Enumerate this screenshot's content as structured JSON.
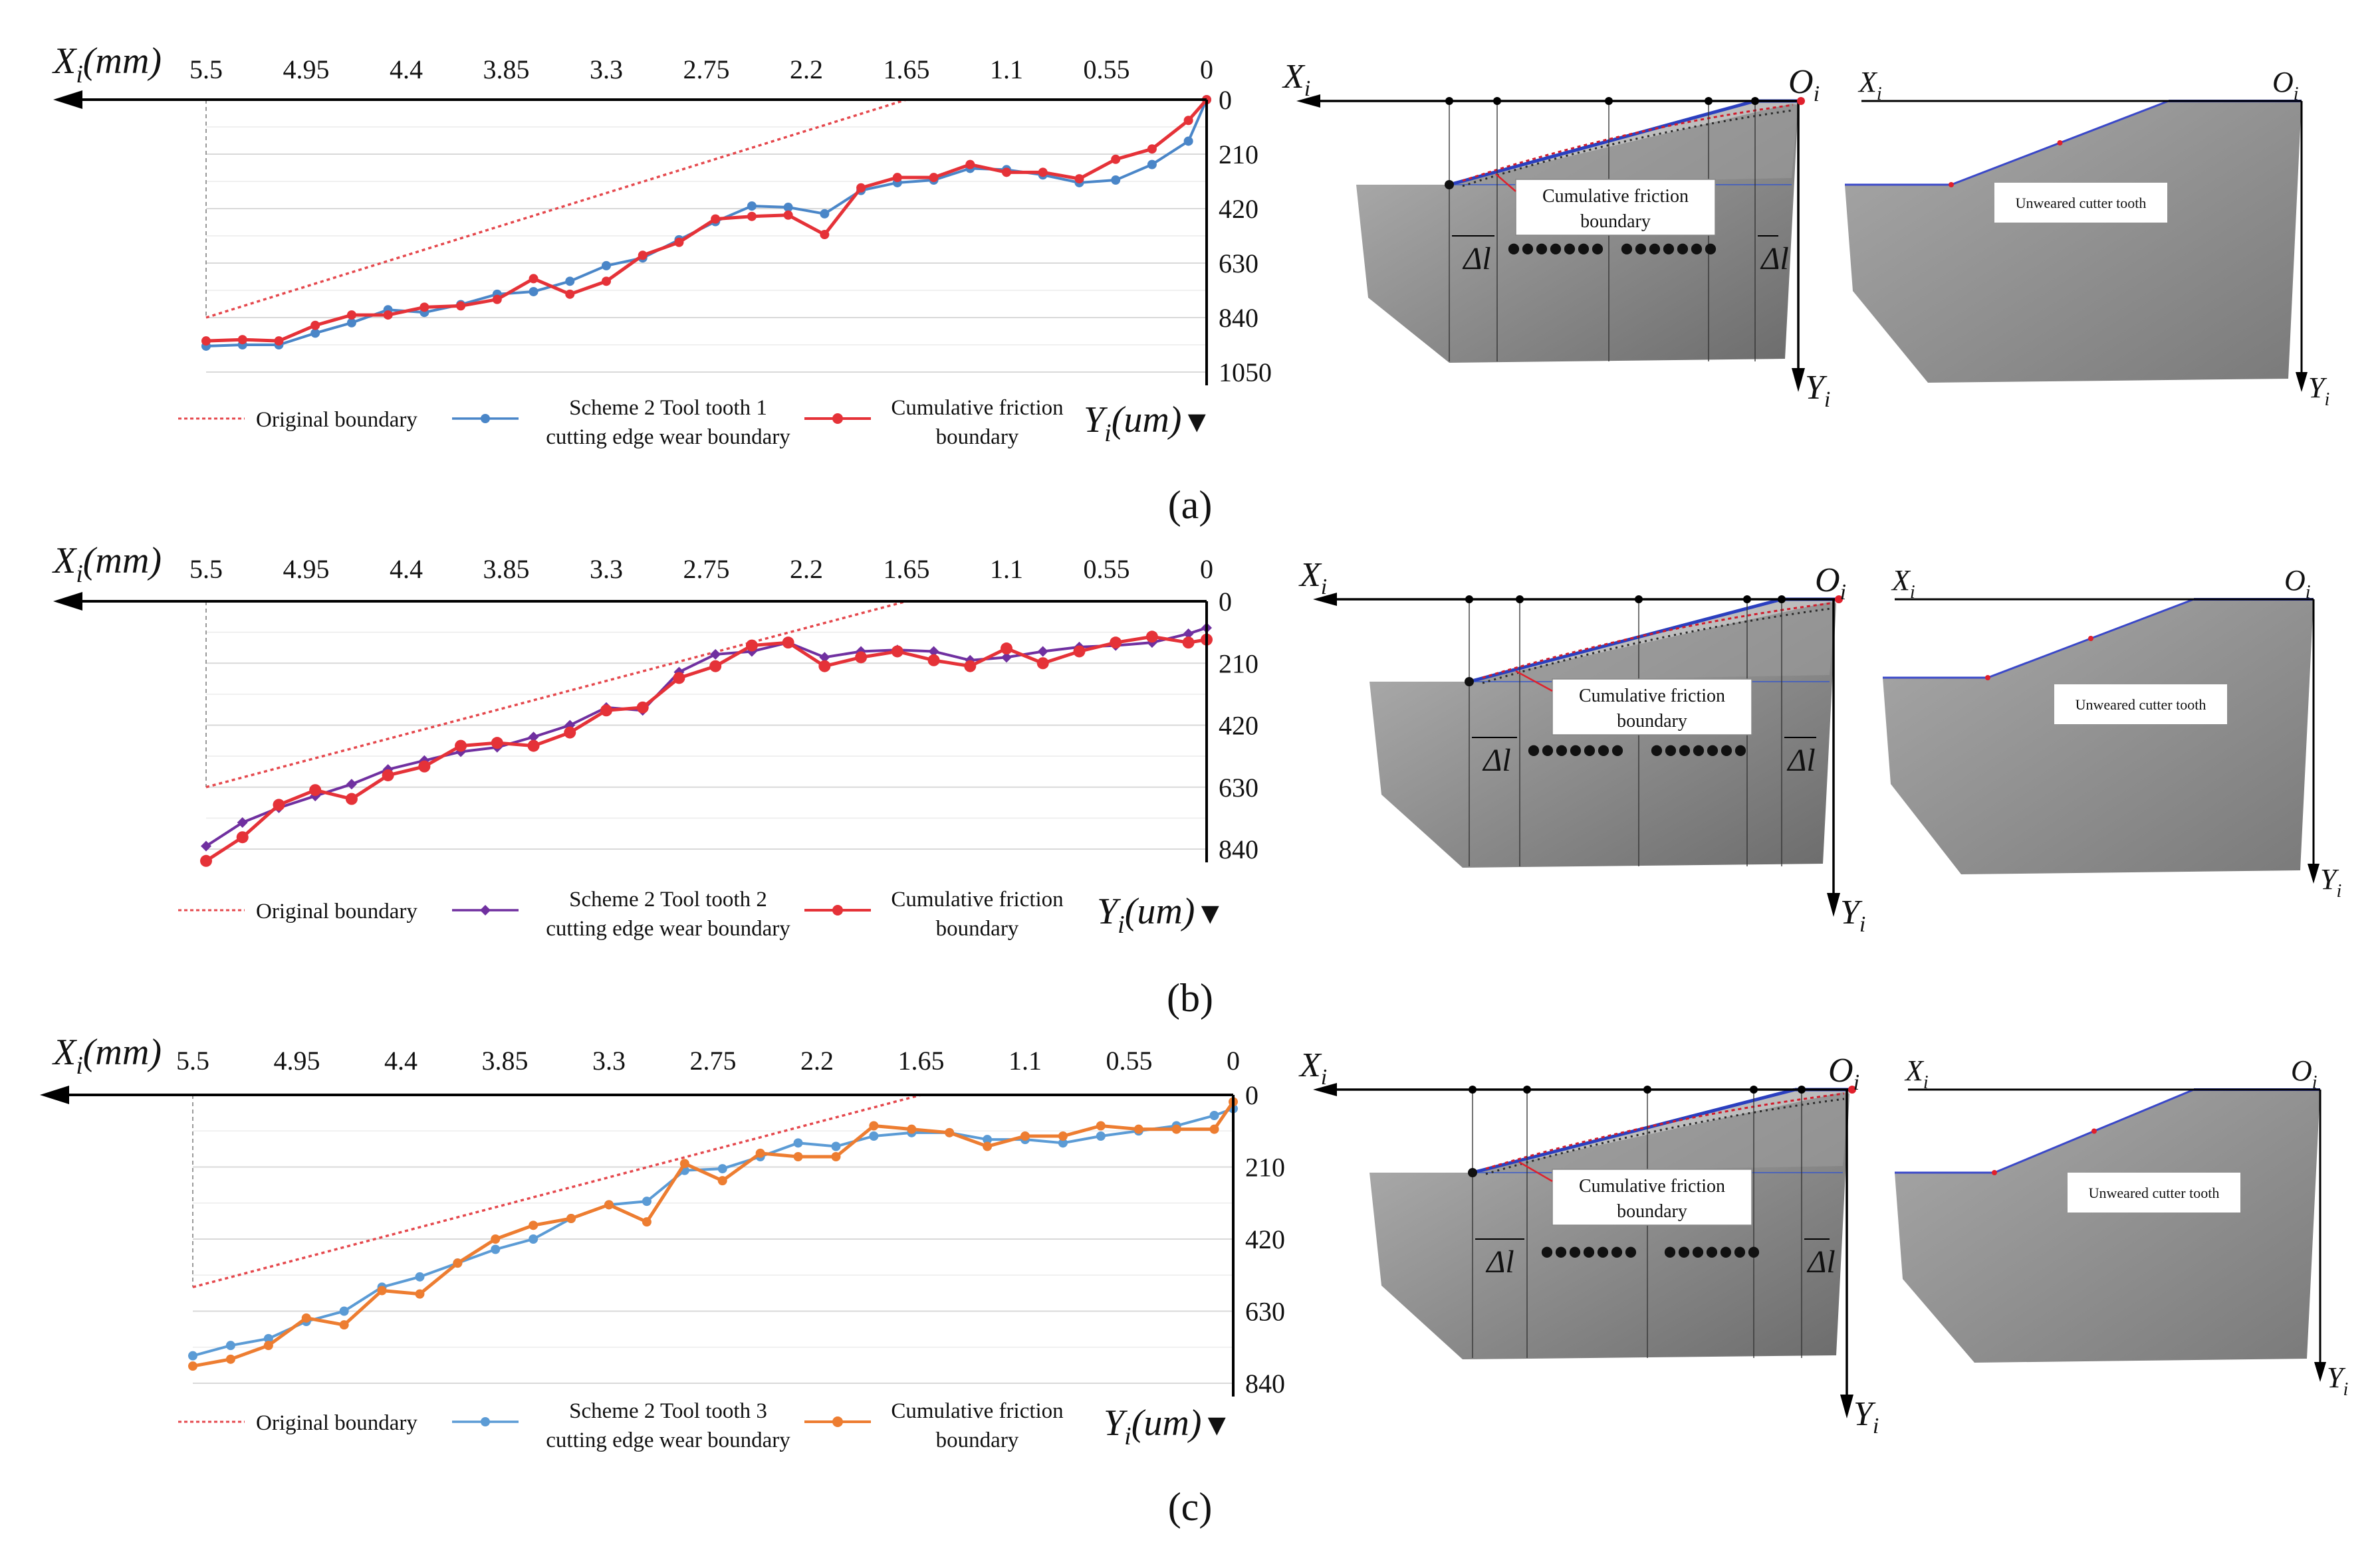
{
  "figure": {
    "captions": [
      "(a)",
      "(b)",
      "(c)"
    ],
    "x_axis_label": "X",
    "x_axis_sub": "i",
    "x_axis_unit": "(mm)",
    "y_axis_label": "Y",
    "y_axis_sub": "i",
    "y_axis_unit": "(um)",
    "y_arrow_glyph": "▼"
  },
  "images": {
    "x_label": "X",
    "x_sub": "i",
    "origin_label": "O",
    "origin_sub": "i",
    "y_label": "Y",
    "y_sub": "i",
    "delta_label": "Δl",
    "dots": "•••••••",
    "friction_text": [
      "Cumulative friction",
      "boundary"
    ],
    "unweared_text": "Unweared cutter tooth"
  },
  "colors": {
    "original": "#e5484d",
    "blue": "#4a86c8",
    "red": "#e53238",
    "purple": "#7030a0",
    "orange": "#ed7d31",
    "tooth_fill": "#8a8a8a"
  },
  "chart_data": [
    {
      "type": "line",
      "panel": "(a)",
      "x_ticks": [
        "5.5",
        "4.95",
        "4.4",
        "3.85",
        "3.3",
        "2.75",
        "2.2",
        "1.65",
        "1.1",
        "0.55",
        "0"
      ],
      "y_ticks": [
        "0",
        "210",
        "420",
        "630",
        "840",
        "1050"
      ],
      "xlim": [
        5.5,
        0
      ],
      "ylim": [
        0,
        1050
      ],
      "original_boundary": {
        "x": [
          5.5,
          1.65,
          0
        ],
        "y": [
          840,
          0,
          0
        ]
      },
      "series": [
        {
          "name": "Original boundary",
          "legend": [
            "Original boundary"
          ],
          "color": "#e5484d",
          "style": "dotted",
          "marker": "none"
        },
        {
          "name": "Scheme 2 Tool tooth 1 cutting edge wear boundary",
          "legend": [
            "Scheme 2 Tool tooth 1",
            "cutting edge wear boundary"
          ],
          "color": "#4a86c8",
          "style": "solid",
          "marker": "circle",
          "x": [
            5.5,
            5.3,
            5.1,
            4.9,
            4.7,
            4.5,
            4.3,
            4.1,
            3.9,
            3.7,
            3.5,
            3.3,
            3.1,
            2.9,
            2.7,
            2.5,
            2.3,
            2.1,
            1.9,
            1.7,
            1.5,
            1.3,
            1.1,
            0.9,
            0.7,
            0.5,
            0.3,
            0.1,
            0
          ],
          "y": [
            950,
            945,
            945,
            900,
            860,
            810,
            820,
            790,
            750,
            740,
            700,
            640,
            610,
            540,
            470,
            410,
            415,
            440,
            350,
            320,
            310,
            265,
            270,
            290,
            320,
            310,
            250,
            160,
            0
          ]
        },
        {
          "name": "Cumulative friction boundary",
          "legend": [
            "Cumulative friction",
            "boundary"
          ],
          "color": "#e53238",
          "style": "solid",
          "marker": "circle",
          "x": [
            5.5,
            5.3,
            5.1,
            4.9,
            4.7,
            4.5,
            4.3,
            4.1,
            3.9,
            3.7,
            3.5,
            3.3,
            3.1,
            2.9,
            2.7,
            2.5,
            2.3,
            2.1,
            1.9,
            1.7,
            1.5,
            1.3,
            1.1,
            0.9,
            0.7,
            0.5,
            0.3,
            0.1,
            0
          ],
          "y": [
            930,
            925,
            930,
            870,
            830,
            830,
            800,
            795,
            770,
            690,
            750,
            700,
            600,
            550,
            460,
            450,
            445,
            520,
            340,
            300,
            300,
            250,
            280,
            280,
            305,
            230,
            190,
            80,
            0
          ]
        }
      ]
    },
    {
      "type": "line",
      "panel": "(b)",
      "x_ticks": [
        "5.5",
        "4.95",
        "4.4",
        "3.85",
        "3.3",
        "2.75",
        "2.2",
        "1.65",
        "1.1",
        "0.55",
        "0"
      ],
      "y_ticks": [
        "0",
        "210",
        "420",
        "630",
        "840"
      ],
      "xlim": [
        5.5,
        0
      ],
      "ylim": [
        0,
        840
      ],
      "original_boundary": {
        "x": [
          5.5,
          1.65,
          0
        ],
        "y": [
          630,
          0,
          0
        ]
      },
      "series": [
        {
          "name": "Original boundary",
          "legend": [
            "Original boundary"
          ],
          "color": "#e5484d",
          "style": "dotted",
          "marker": "none"
        },
        {
          "name": "Scheme 2 Tool tooth 2 cutting edge wear boundary",
          "legend": [
            "Scheme 2 Tool tooth 2",
            "cutting edge wear boundary"
          ],
          "color": "#7030a0",
          "style": "solid",
          "marker": "diamond",
          "x": [
            5.5,
            5.3,
            5.1,
            4.9,
            4.7,
            4.5,
            4.3,
            4.1,
            3.9,
            3.7,
            3.5,
            3.3,
            3.1,
            2.9,
            2.7,
            2.5,
            2.3,
            2.1,
            1.9,
            1.7,
            1.5,
            1.3,
            1.1,
            0.9,
            0.7,
            0.5,
            0.3,
            0.1,
            0
          ],
          "y": [
            830,
            750,
            700,
            660,
            620,
            570,
            540,
            510,
            495,
            460,
            420,
            360,
            370,
            240,
            180,
            170,
            140,
            190,
            170,
            165,
            170,
            200,
            190,
            170,
            155,
            150,
            140,
            110,
            90
          ]
        },
        {
          "name": "Cumulative friction boundary",
          "legend": [
            "Cumulative friction",
            "boundary"
          ],
          "color": "#e53238",
          "style": "solid",
          "marker": "circle",
          "x": [
            5.5,
            5.3,
            5.1,
            4.9,
            4.7,
            4.5,
            4.3,
            4.1,
            3.9,
            3.7,
            3.5,
            3.3,
            3.1,
            2.9,
            2.7,
            2.5,
            2.3,
            2.1,
            1.9,
            1.7,
            1.5,
            1.3,
            1.1,
            0.9,
            0.7,
            0.5,
            0.3,
            0.1,
            0
          ],
          "y": [
            880,
            800,
            690,
            640,
            670,
            590,
            560,
            490,
            480,
            490,
            445,
            370,
            360,
            260,
            220,
            150,
            140,
            220,
            190,
            170,
            200,
            220,
            160,
            210,
            170,
            140,
            120,
            140,
            130
          ]
        }
      ]
    },
    {
      "type": "line",
      "panel": "(c)",
      "x_ticks": [
        "5.5",
        "4.95",
        "4.4",
        "3.85",
        "3.3",
        "2.75",
        "2.2",
        "1.65",
        "1.1",
        "0.55",
        "0"
      ],
      "y_ticks": [
        "0",
        "210",
        "420",
        "630",
        "840"
      ],
      "xlim": [
        5.5,
        0
      ],
      "ylim": [
        0,
        840
      ],
      "original_boundary": {
        "x": [
          5.5,
          1.65,
          0
        ],
        "y": [
          560,
          0,
          0
        ]
      },
      "series": [
        {
          "name": "Original boundary",
          "legend": [
            "Original boundary"
          ],
          "color": "#e5484d",
          "style": "dotted",
          "marker": "none"
        },
        {
          "name": "Scheme 2 Tool tooth 3 cutting edge wear boundary",
          "legend": [
            "Scheme 2 Tool tooth 3",
            "cutting edge wear boundary"
          ],
          "color": "#5b9bd5",
          "style": "solid",
          "marker": "circle",
          "x": [
            5.5,
            5.3,
            5.1,
            4.9,
            4.7,
            4.5,
            4.3,
            4.1,
            3.9,
            3.7,
            3.5,
            3.3,
            3.1,
            2.9,
            2.7,
            2.5,
            2.3,
            2.1,
            1.9,
            1.7,
            1.5,
            1.3,
            1.1,
            0.9,
            0.7,
            0.5,
            0.3,
            0.1,
            0
          ],
          "y": [
            760,
            730,
            710,
            660,
            630,
            560,
            530,
            490,
            450,
            420,
            360,
            320,
            310,
            220,
            215,
            180,
            140,
            150,
            120,
            110,
            110,
            130,
            130,
            140,
            120,
            105,
            90,
            60,
            40
          ]
        },
        {
          "name": "Cumulative friction boundary",
          "legend": [
            "Cumulative friction",
            "boundary"
          ],
          "color": "#ed7d31",
          "style": "solid",
          "marker": "circle",
          "x": [
            5.5,
            5.3,
            5.1,
            4.9,
            4.7,
            4.5,
            4.3,
            4.1,
            3.9,
            3.7,
            3.5,
            3.3,
            3.1,
            2.9,
            2.7,
            2.5,
            2.3,
            2.1,
            1.9,
            1.7,
            1.5,
            1.3,
            1.1,
            0.9,
            0.7,
            0.5,
            0.3,
            0.1,
            0
          ],
          "y": [
            790,
            770,
            730,
            650,
            670,
            570,
            580,
            490,
            420,
            380,
            360,
            320,
            370,
            200,
            250,
            170,
            180,
            180,
            90,
            100,
            110,
            150,
            120,
            120,
            90,
            100,
            100,
            100,
            20
          ]
        }
      ]
    }
  ]
}
